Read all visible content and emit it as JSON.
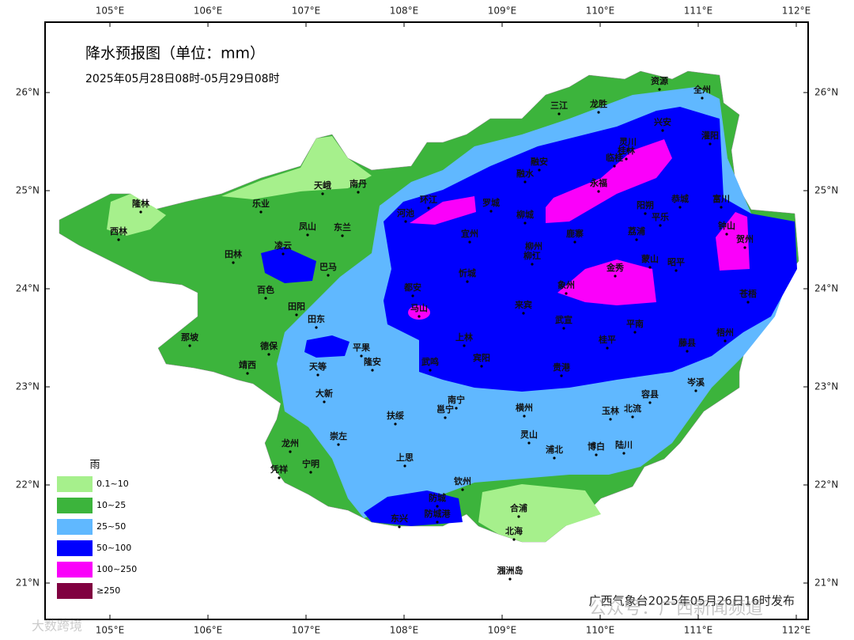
{
  "header": {
    "title": "降水预报图（单位：mm）",
    "subtitle": "2025年05月28日08时-05月29日08时"
  },
  "axes": {
    "longitudes": [
      "105°E",
      "106°E",
      "107°E",
      "108°E",
      "109°E",
      "110°E",
      "111°E",
      "112°E"
    ],
    "latitudes": [
      "26°N",
      "25°N",
      "24°N",
      "23°N",
      "22°N",
      "21°N"
    ]
  },
  "legend": {
    "title": "雨",
    "items": [
      {
        "label": "0.1~10",
        "color": "#a6f08c"
      },
      {
        "label": "10~25",
        "color": "#3cb43c"
      },
      {
        "label": "25~50",
        "color": "#60b8ff"
      },
      {
        "label": "50~100",
        "color": "#0000fe"
      },
      {
        "label": "100~250",
        "color": "#fa00fa"
      },
      {
        "label": "≥250",
        "color": "#800040"
      }
    ]
  },
  "places": [
    "隆林",
    "西林",
    "天峨",
    "南丹",
    "乐业",
    "凤山",
    "东兰",
    "田林",
    "凌云",
    "巴马",
    "百色",
    "田阳",
    "田东",
    "那坡",
    "德保",
    "靖西",
    "平果",
    "天等",
    "隆安",
    "武鸣",
    "大新",
    "龙州",
    "崇左",
    "宁明",
    "凭祥",
    "扶绥",
    "上思",
    "南宁",
    "邕宁",
    "钦州",
    "防城",
    "东兴",
    "防城港",
    "合浦",
    "北海",
    "涠洲岛",
    "灵山",
    "浦北",
    "博白",
    "陆川",
    "横州",
    "玉林",
    "北流",
    "容县",
    "岑溪",
    "上林",
    "宾阳",
    "贵港",
    "武宣",
    "桂平",
    "平南",
    "藤县",
    "梧州",
    "来宾",
    "都安",
    "马山",
    "忻城",
    "宜州",
    "环江",
    "河池",
    "罗城",
    "融水",
    "融安",
    "三江",
    "龙胜",
    "资源",
    "全州",
    "兴安",
    "灌阳",
    "灵川",
    "桂林",
    "临桂",
    "永福",
    "柳城",
    "柳州",
    "柳江",
    "鹿寨",
    "阳朔",
    "荔浦",
    "平乐",
    "恭城",
    "钟山",
    "富川",
    "贺州",
    "象州",
    "金秀",
    "蒙山",
    "昭平",
    "苍梧"
  ],
  "footer": {
    "publisher": "广西气象台2025年05月26日16时发布",
    "watermark": "公众号：广西新闻频道",
    "corner_mark": "大数跨境"
  }
}
